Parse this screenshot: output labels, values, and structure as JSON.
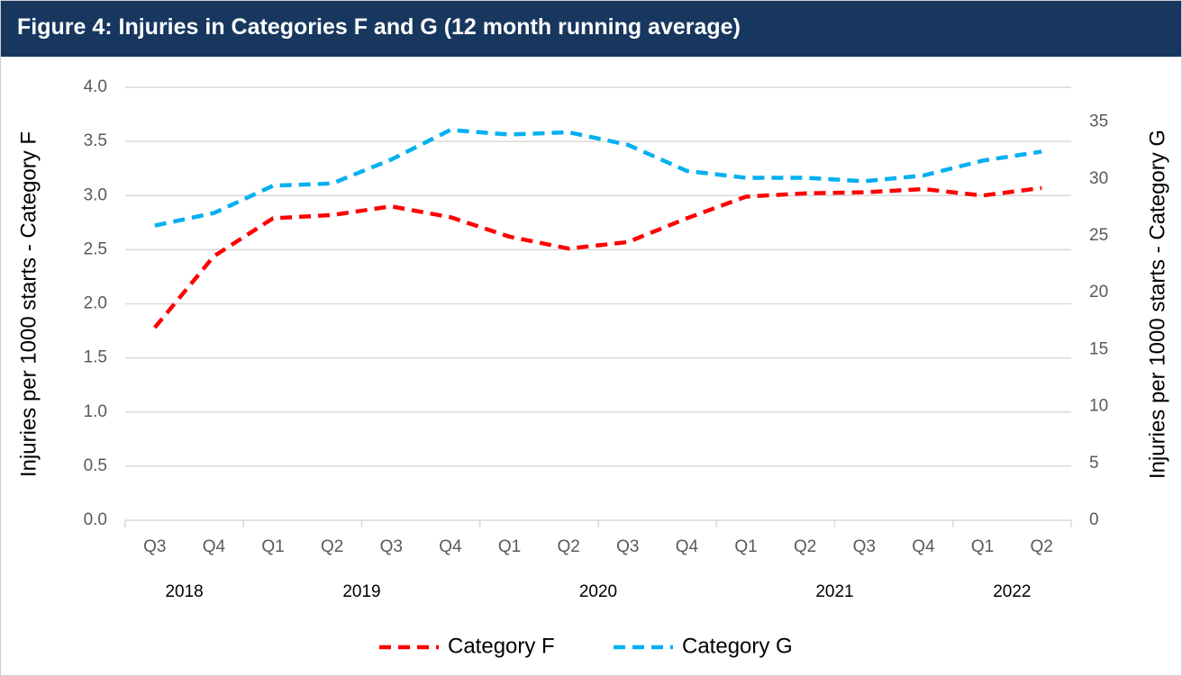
{
  "chart_data": {
    "type": "line",
    "title": "Figure 4: Injuries in Categories F and G (12 month running average)",
    "categories": [
      "Q3",
      "Q4",
      "Q1",
      "Q2",
      "Q3",
      "Q4",
      "Q1",
      "Q2",
      "Q3",
      "Q4",
      "Q1",
      "Q2",
      "Q3",
      "Q4",
      "Q1",
      "Q2"
    ],
    "years": [
      "2018",
      null,
      "2019",
      null,
      null,
      null,
      "2020",
      null,
      null,
      null,
      "2021",
      null,
      null,
      null,
      "2022",
      null
    ],
    "series": [
      {
        "name": "Category F",
        "color": "#ff0000",
        "values": [
          1.78,
          2.44,
          2.79,
          2.82,
          2.9,
          2.8,
          2.62,
          2.51,
          2.57,
          2.79,
          2.99,
          3.02,
          3.03,
          3.06,
          3.0,
          3.07
        ]
      },
      {
        "name": "Category G",
        "color": "#00b0f0",
        "axis": "y2",
        "values": [
          25.9,
          27.0,
          29.4,
          29.6,
          31.7,
          34.3,
          33.9,
          34.1,
          33.0,
          30.7,
          30.1,
          30.1,
          29.8,
          30.3,
          31.6,
          32.4
        ]
      }
    ],
    "ylabel": "Injuries per 1000 starts - Category F",
    "y2label": "Injuries per 1000 starts - Category G",
    "ylim": [
      0,
      4
    ],
    "yticks": [
      {
        "value": 0,
        "label": "0.0"
      },
      {
        "value": 0.5,
        "label": "0.5"
      },
      {
        "value": 1,
        "label": "1.0"
      },
      {
        "value": 1.5,
        "label": "1.5"
      },
      {
        "value": 2,
        "label": "2.0"
      },
      {
        "value": 2.5,
        "label": "2.5"
      },
      {
        "value": 3,
        "label": "3.0"
      },
      {
        "value": 3.5,
        "label": "3.5"
      },
      {
        "value": 4,
        "label": "4.0"
      }
    ],
    "y2lim": [
      0,
      38.05
    ],
    "y2ticks": [
      0,
      5,
      10,
      15,
      20,
      25,
      30,
      35
    ],
    "grid": true,
    "legend": "bottom",
    "dashed": true
  }
}
